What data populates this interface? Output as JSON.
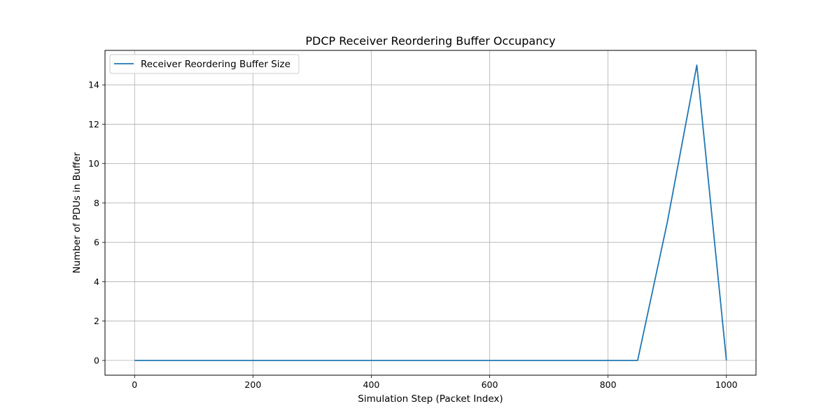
{
  "chart_data": {
    "type": "line",
    "title": "PDCP Receiver Reordering Buffer Occupancy",
    "xlabel": "Simulation Step (Packet Index)",
    "ylabel": "Number of PDUs in Buffer",
    "xlim": [
      -50,
      1050
    ],
    "ylim": [
      -0.75,
      15.75
    ],
    "xticks": [
      0,
      200,
      400,
      600,
      800,
      1000
    ],
    "yticks": [
      0,
      2,
      4,
      6,
      8,
      10,
      12,
      14
    ],
    "grid": true,
    "legend_position": "upper-left",
    "series": [
      {
        "name": "Receiver Reordering Buffer Size",
        "color": "#1f77b4",
        "x": [
          0,
          850,
          900,
          950,
          1000
        ],
        "y": [
          0,
          0,
          7,
          15,
          0
        ]
      }
    ]
  }
}
